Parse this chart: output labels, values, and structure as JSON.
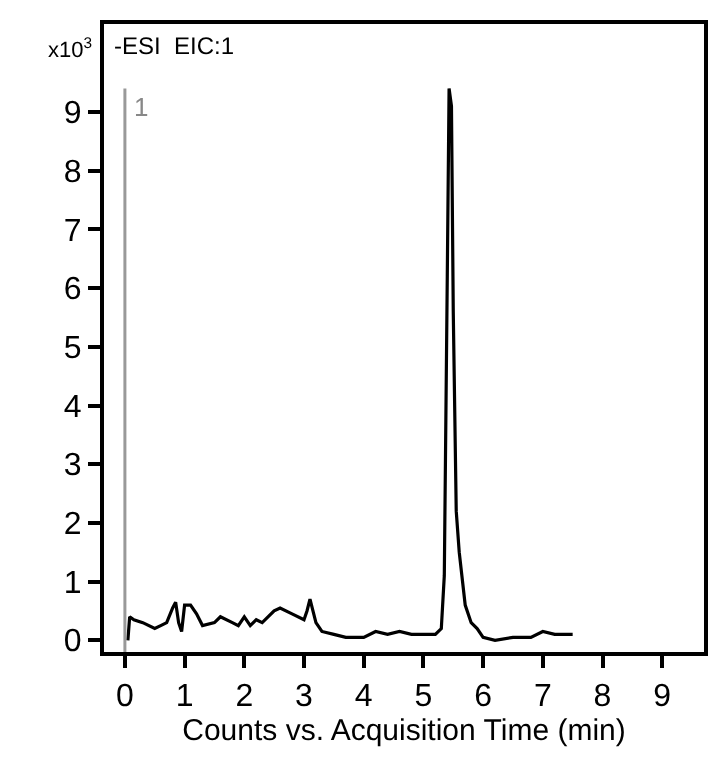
{
  "chart_data": {
    "type": "line",
    "title": "-ESI  EIC:1",
    "xlabel": "Counts vs. Acquisition Time (min)",
    "ylabel": "x10$^{3}$",
    "x": [
      0.05,
      0.08,
      0.15,
      0.3,
      0.5,
      0.6,
      0.7,
      0.8,
      0.85,
      0.9,
      0.95,
      1.0,
      1.1,
      1.2,
      1.3,
      1.5,
      1.6,
      1.8,
      1.9,
      2.0,
      2.1,
      2.2,
      2.3,
      2.5,
      2.6,
      2.8,
      3.0,
      3.05,
      3.1,
      3.2,
      3.3,
      3.5,
      3.7,
      3.9,
      4.0,
      4.2,
      4.4,
      4.6,
      4.8,
      5.0,
      5.2,
      5.3,
      5.35,
      5.4,
      5.43,
      5.47,
      5.5,
      5.55,
      5.6,
      5.7,
      5.8,
      5.9,
      6.0,
      6.2,
      6.5,
      6.8,
      7.0,
      7.2,
      7.5
    ],
    "series": [
      {
        "color": "#000000",
        "values": [
          0.0,
          0.4,
          0.35,
          0.3,
          0.2,
          0.25,
          0.3,
          0.55,
          0.65,
          0.3,
          0.15,
          0.6,
          0.6,
          0.45,
          0.25,
          0.3,
          0.4,
          0.3,
          0.25,
          0.4,
          0.25,
          0.35,
          0.3,
          0.5,
          0.55,
          0.45,
          0.35,
          0.5,
          0.7,
          0.3,
          0.15,
          0.1,
          0.05,
          0.05,
          0.05,
          0.15,
          0.1,
          0.15,
          0.1,
          0.1,
          0.1,
          0.2,
          1.1,
          6.2,
          9.4,
          9.1,
          5.6,
          2.2,
          1.5,
          0.6,
          0.3,
          0.2,
          0.05,
          0.0,
          0.05,
          0.05,
          0.15,
          0.1,
          0.1
        ]
      }
    ],
    "xlim": [
      -0.35,
      9.7
    ],
    "ylim": [
      -0.2,
      10.5
    ],
    "xticks": [
      0,
      1,
      2,
      3,
      4,
      5,
      6,
      7,
      8,
      9
    ],
    "yticks": [
      0,
      1,
      2,
      3,
      4,
      5,
      6,
      7,
      8,
      9
    ],
    "ref_lines": [
      {
        "axis": "x",
        "value": 0,
        "color": "#999999"
      }
    ],
    "annotations": [
      {
        "text": "1",
        "x": 0,
        "y": 9.4
      }
    ],
    "grid": false,
    "marker": "none",
    "line_style": "solid"
  }
}
